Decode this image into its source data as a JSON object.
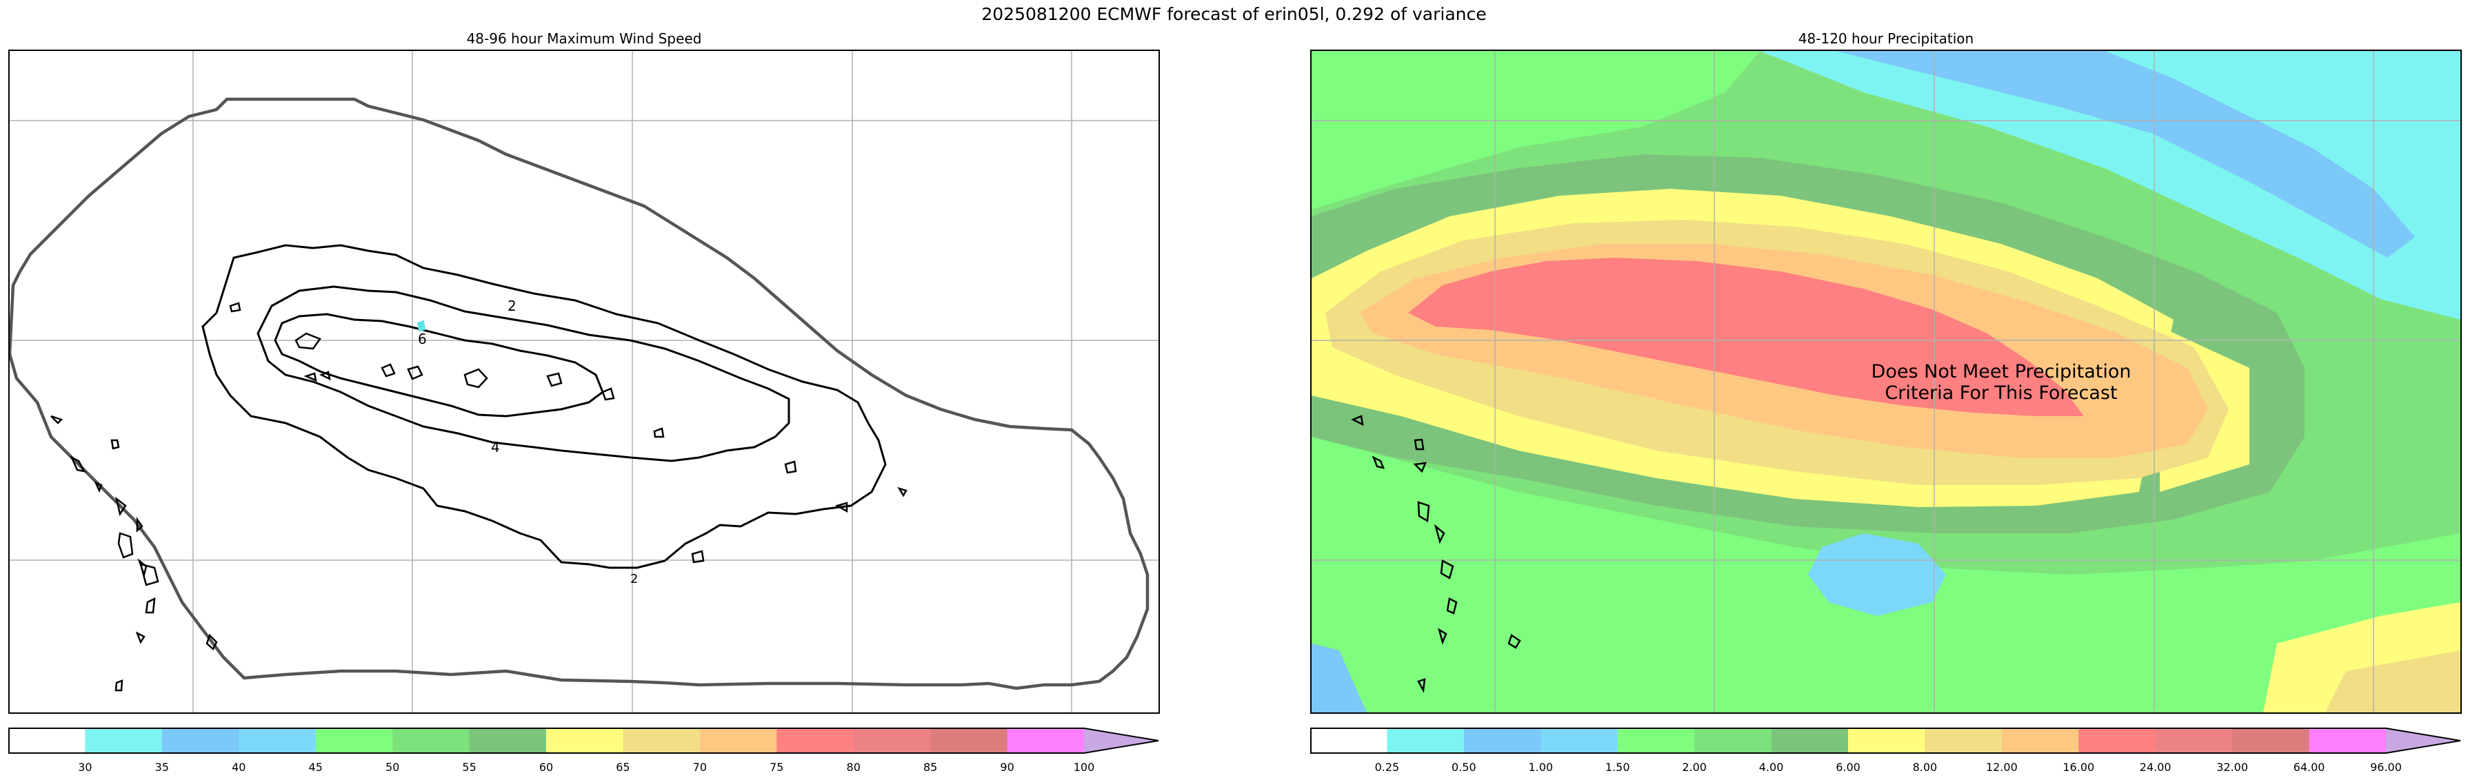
{
  "figure_title": "2025081200 ECMWF forecast of erin05l, 0.292 of variance",
  "chart_data": [
    {
      "type": "heatmap",
      "title": "48-96 hour Maximum Wind Speed",
      "contour_labels": [
        "2",
        "4",
        "6",
        "2"
      ],
      "grid": true,
      "colorbar": {
        "ticks": [
          "30",
          "35",
          "40",
          "45",
          "50",
          "55",
          "60",
          "65",
          "70",
          "75",
          "80",
          "85",
          "90",
          "100"
        ],
        "colors": [
          "#ffffff",
          "#7ef4f2",
          "#7cc8f8",
          "#7bd8fb",
          "#7ffd7f",
          "#7de27c",
          "#7cc47c",
          "#fffd7e",
          "#f1de85",
          "#fec883",
          "#fe8080",
          "#ec8283",
          "#dc7c7c",
          "#fd7ffd",
          "#c8a8e3"
        ],
        "extend": "max"
      }
    },
    {
      "type": "heatmap",
      "title": "48-120 hour Precipitation",
      "annotation": "Does Not Meet Precipitation\nCriteria For This Forecast",
      "grid": true,
      "colorbar": {
        "ticks": [
          "0.25",
          "0.50",
          "1.00",
          "1.50",
          "2.00",
          "4.00",
          "6.00",
          "8.00",
          "12.00",
          "16.00",
          "24.00",
          "32.00",
          "64.00",
          "96.00"
        ],
        "colors": [
          "#ffffff",
          "#7ef4f2",
          "#7cc8f8",
          "#7bd8fb",
          "#7ffd7f",
          "#7de27c",
          "#7cc47c",
          "#fffd7e",
          "#f1de85",
          "#fec883",
          "#fe8080",
          "#ec8283",
          "#dc7c7c",
          "#fd7ffd",
          "#c8a8e3"
        ],
        "extend": "max"
      }
    }
  ]
}
